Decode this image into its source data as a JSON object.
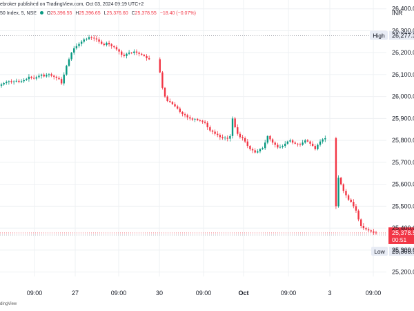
{
  "header": {
    "publish_line": "ebroker published on TradingView.com, Oct 03, 2024 09:19 UTC+2",
    "symbol": "50 Index, 5, NSE",
    "ohlc": [
      {
        "label": "O",
        "value": "25,396.55"
      },
      {
        "label": "H",
        "value": "25,396.65"
      },
      {
        "label": "L",
        "value": "25,376.60"
      },
      {
        "label": "C",
        "value": "25,378.55"
      }
    ],
    "change": "−18.40 (−0.07%)"
  },
  "footer": {
    "text": "dingView"
  },
  "chart_data": {
    "type": "candlestick",
    "currency": "INR",
    "y_ticks": [
      25200,
      25300,
      25400,
      25500,
      25600,
      25700,
      25800,
      25900,
      26000,
      26100,
      26200,
      26300,
      26400
    ],
    "y_tick_labels": [
      "25,200.00",
      "25,300.00",
      "25,400.00",
      "25,500.00",
      "25,600.00",
      "25,700.00",
      "25,800.00",
      "25,900.00",
      "26,000.00",
      "26,100.00",
      "26,200.00",
      "26,300.00",
      "26,400.00"
    ],
    "ylim": [
      25180,
      26440
    ],
    "x_tick_labels": [
      "09:00",
      "27",
      "09:00",
      "30",
      "09:00",
      "Oct",
      "09:00",
      "3",
      "09:00"
    ],
    "high_marker": {
      "label": "High",
      "value": 26277.35,
      "text": "26,277.35"
    },
    "low_marker": {
      "label": "Low",
      "value": 25368.9,
      "text": "25,368.90"
    },
    "last_price": {
      "value": 25378.55,
      "text": "25,378.55",
      "countdown": "00:51"
    },
    "colors": {
      "up": "#089981",
      "down": "#f23645",
      "last_price_bg": "#f23645",
      "grid": "#eef0f3"
    },
    "grid": true,
    "series": {
      "closes": [
        26055,
        26062,
        26066,
        26070,
        26065,
        26068,
        26072,
        26066,
        26070,
        26075,
        26080,
        26090,
        26085,
        26082,
        26088,
        26095,
        26100,
        26092,
        26098,
        26102,
        26095,
        26090,
        26085,
        26080,
        26060,
        26100,
        26140,
        26170,
        26200,
        26220,
        26230,
        26240,
        26250,
        26260,
        26262,
        26270,
        26268,
        26265,
        26260,
        26250,
        26240,
        26235,
        26245,
        26238,
        26230,
        26225,
        26215,
        26205,
        26190,
        26185,
        26195,
        26200,
        26198,
        26205,
        26200,
        26195,
        26190,
        26185,
        26175,
        26170,
        26110,
        26040,
        26000,
        25980,
        25975,
        25965,
        25955,
        25945,
        25930,
        25920,
        25915,
        25905,
        25900,
        25895,
        25898,
        25892,
        25890,
        25885,
        25880,
        25860,
        25845,
        25840,
        25830,
        25825,
        25815,
        25810,
        25812,
        25808,
        25820,
        25900,
        25860,
        25830,
        25815,
        25810,
        25795,
        25775,
        25760,
        25755,
        25745,
        25750,
        25760,
        25765,
        25790,
        25820,
        25805,
        25790,
        25780,
        25768,
        25770,
        25775,
        25785,
        25795,
        25800,
        25790,
        25785,
        25782,
        25780,
        25790,
        25800,
        25795,
        25785,
        25775,
        25760,
        25780,
        25795,
        25805,
        25810,
        25500,
        25630,
        25600,
        25570,
        25550,
        25530,
        25520,
        25500,
        25480,
        25440,
        25410,
        25400,
        25395,
        25390,
        25385,
        25380,
        25378.55
      ]
    }
  }
}
